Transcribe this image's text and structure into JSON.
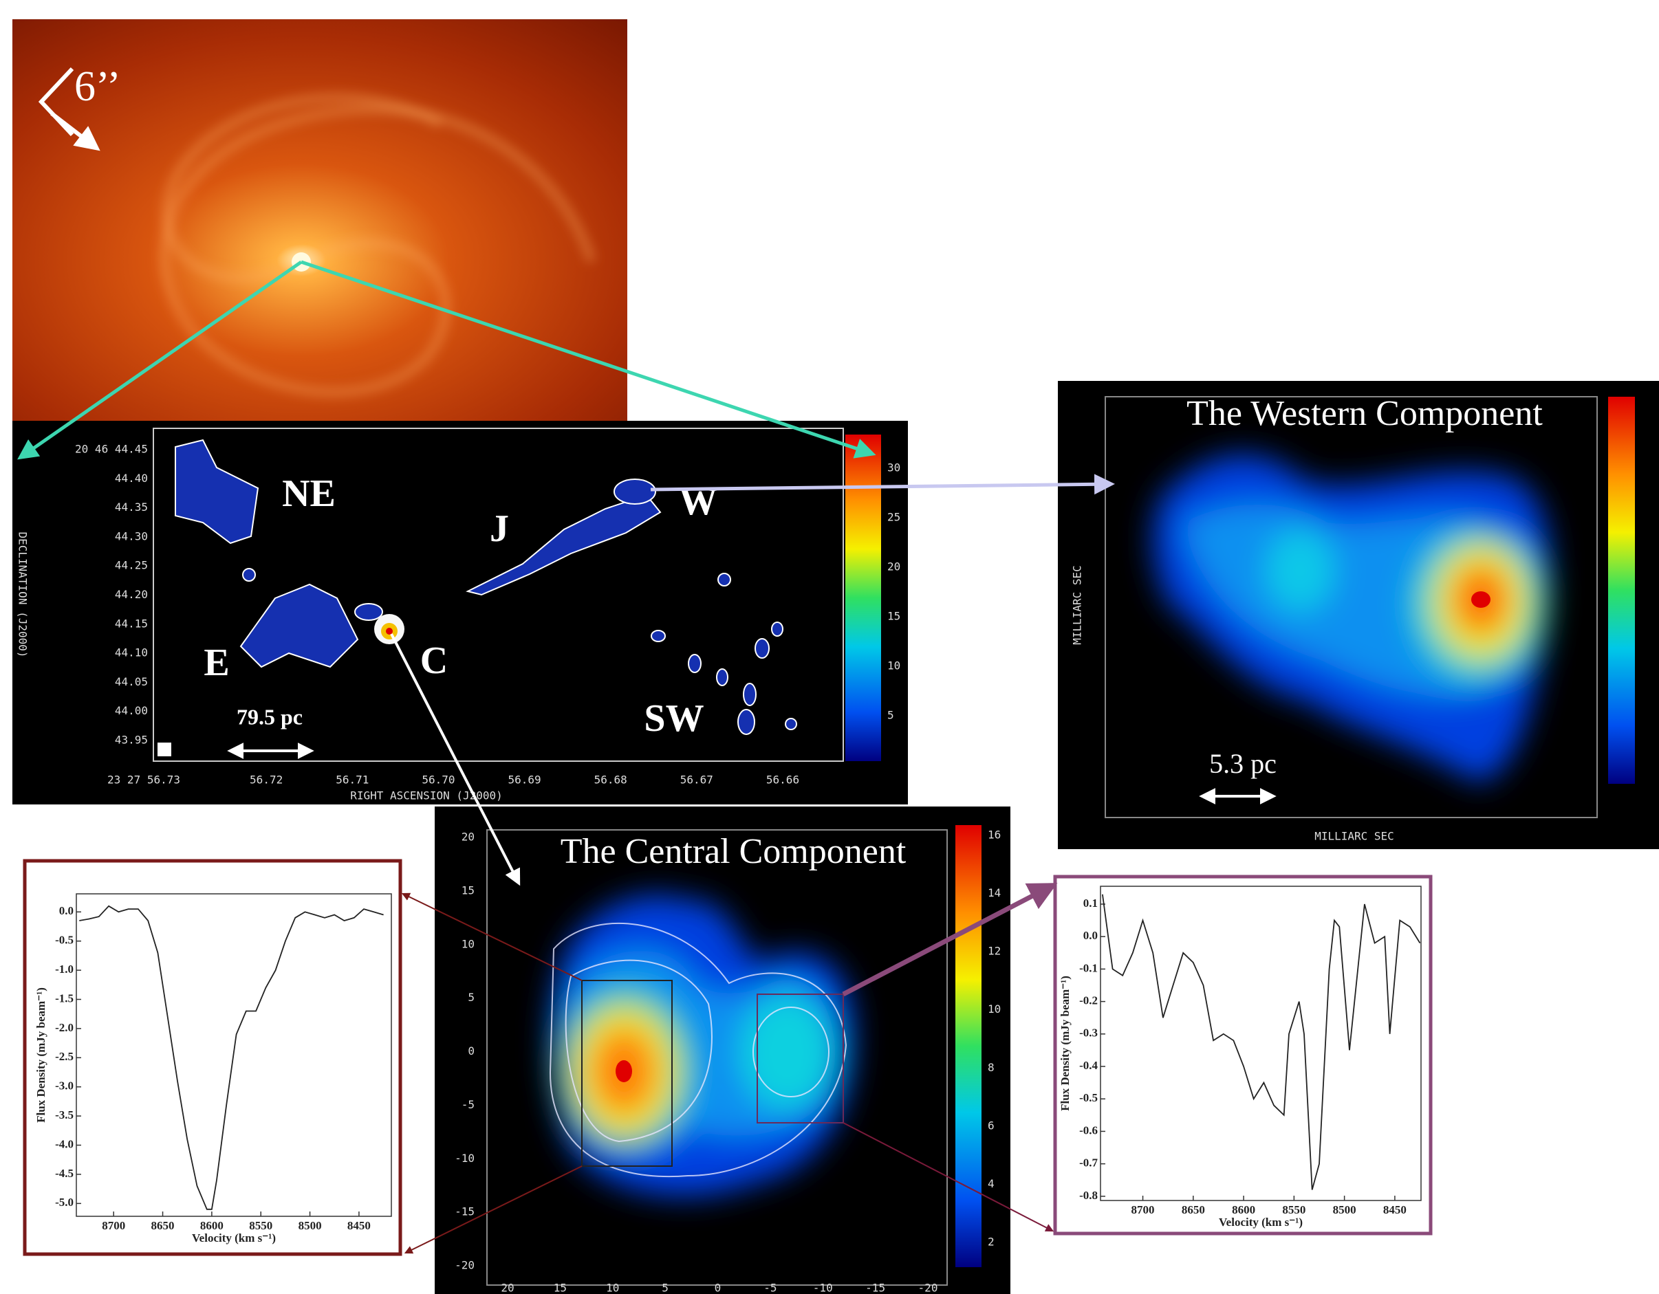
{
  "galaxy_image": {
    "scale_label": "6’’"
  },
  "radio_map": {
    "source_labels": [
      "NE",
      "J",
      "W",
      "E",
      "C",
      "SW"
    ],
    "scale_bar": "79.5 pc",
    "y_axis_label": "DECLINATION (J2000)",
    "x_axis_label": "RIGHT ASCENSION (J2000)",
    "y_tick_labels": [
      "20 46 44.45",
      "44.40",
      "44.35",
      "44.30",
      "44.25",
      "44.20",
      "44.15",
      "44.10",
      "44.05",
      "44.00",
      "43.95"
    ],
    "x_tick_labels": [
      "23 27 56.73",
      "56.72",
      "56.71",
      "56.70",
      "56.69",
      "56.68",
      "56.67",
      "56.66"
    ],
    "colorbar_labels": [
      "30",
      "25",
      "20",
      "15",
      "10",
      "5"
    ]
  },
  "western_component": {
    "title": "The Western Component",
    "scale_bar": "5.3 pc",
    "axis_label": "MILLIARC SEC"
  },
  "central_component": {
    "title": "The Central Component",
    "y_tick_labels": [
      "20",
      "15",
      "10",
      "5",
      "0",
      "-5",
      "-10",
      "-15",
      "-20"
    ],
    "x_tick_labels": [
      "20",
      "15",
      "10",
      "5",
      "0",
      "-5",
      "-10",
      "-15",
      "-20"
    ],
    "colorbar_labels": [
      "16",
      "14",
      "12",
      "10",
      "8",
      "6",
      "4",
      "2"
    ]
  },
  "chart_data": [
    {
      "type": "line",
      "x_label": "Velocity (km s⁻¹)",
      "y_label": "Flux Density (mJy beam⁻¹)",
      "color": "#222222",
      "x": [
        8735,
        8725,
        8715,
        8705,
        8695,
        8685,
        8675,
        8665,
        8655,
        8645,
        8635,
        8625,
        8615,
        8605,
        8600,
        8595,
        8585,
        8575,
        8565,
        8555,
        8545,
        8535,
        8525,
        8515,
        8505,
        8495,
        8485,
        8475,
        8465,
        8455,
        8445,
        8435,
        8425
      ],
      "values": [
        -0.15,
        -0.12,
        -0.08,
        0.1,
        0.0,
        0.05,
        0.05,
        -0.15,
        -0.7,
        -1.8,
        -2.9,
        -3.9,
        -4.7,
        -5.1,
        -5.1,
        -4.6,
        -3.3,
        -2.1,
        -1.7,
        -1.7,
        -1.3,
        -1.0,
        -0.5,
        -0.1,
        0.0,
        -0.05,
        -0.1,
        -0.05,
        -0.15,
        -0.1,
        0.05,
        0.0,
        -0.05
      ],
      "xlim": [
        8738,
        8417
      ],
      "ylim": [
        -5.22,
        0.31
      ],
      "xticks": [
        8700,
        8650,
        8600,
        8550,
        8500,
        8450
      ],
      "yticks": [
        {
          "value": 0,
          "label": "0.0"
        },
        {
          "value": -0.5,
          "label": "-0.5"
        },
        {
          "value": -1,
          "label": "-1.0"
        },
        {
          "value": -1.5,
          "label": "-1.5"
        },
        {
          "value": -2,
          "label": "-2.0"
        },
        {
          "value": -2.5,
          "label": "-2.5"
        },
        {
          "value": -3,
          "label": "-3.0"
        },
        {
          "value": -3.5,
          "label": "-3.5"
        },
        {
          "value": -4,
          "label": "-4.0"
        },
        {
          "value": -4.5,
          "label": "-4.5"
        },
        {
          "value": -5,
          "label": "-5.0"
        }
      ]
    },
    {
      "type": "line",
      "x_label": "Velocity (km s⁻¹)",
      "y_label": "Flux Density (mJy beam⁻¹)",
      "color": "#222222",
      "x": [
        8740,
        8730,
        8720,
        8710,
        8700,
        8690,
        8680,
        8670,
        8660,
        8650,
        8640,
        8630,
        8620,
        8610,
        8600,
        8590,
        8580,
        8570,
        8560,
        8555,
        8545,
        8540,
        8532,
        8525,
        8515,
        8510,
        8505,
        8495,
        8490,
        8480,
        8470,
        8460,
        8455,
        8445,
        8435,
        8425
      ],
      "values": [
        0.13,
        -0.1,
        -0.12,
        -0.05,
        0.05,
        -0.05,
        -0.25,
        -0.15,
        -0.05,
        -0.08,
        -0.15,
        -0.32,
        -0.3,
        -0.32,
        -0.4,
        -0.5,
        -0.45,
        -0.52,
        -0.55,
        -0.3,
        -0.2,
        -0.3,
        -0.78,
        -0.7,
        -0.1,
        0.05,
        0.03,
        -0.35,
        -0.2,
        0.1,
        -0.02,
        0.0,
        -0.3,
        0.05,
        0.03,
        -0.02
      ],
      "xlim": [
        8742,
        8424
      ],
      "ylim": [
        -0.813,
        0.155
      ],
      "xticks": [
        8700,
        8650,
        8600,
        8550,
        8500,
        8450
      ],
      "yticks": [
        {
          "value": 0.1,
          "label": "0.1"
        },
        {
          "value": 0,
          "label": "0.0"
        },
        {
          "value": -0.1,
          "label": "-0.1"
        },
        {
          "value": -0.2,
          "label": "-0.2"
        },
        {
          "value": -0.3,
          "label": "-0.3"
        },
        {
          "value": -0.4,
          "label": "-0.4"
        },
        {
          "value": -0.5,
          "label": "-0.5"
        },
        {
          "value": -0.6,
          "label": "-0.6"
        },
        {
          "value": -0.7,
          "label": "-0.7"
        },
        {
          "value": -0.8,
          "label": "-0.8"
        }
      ]
    }
  ]
}
